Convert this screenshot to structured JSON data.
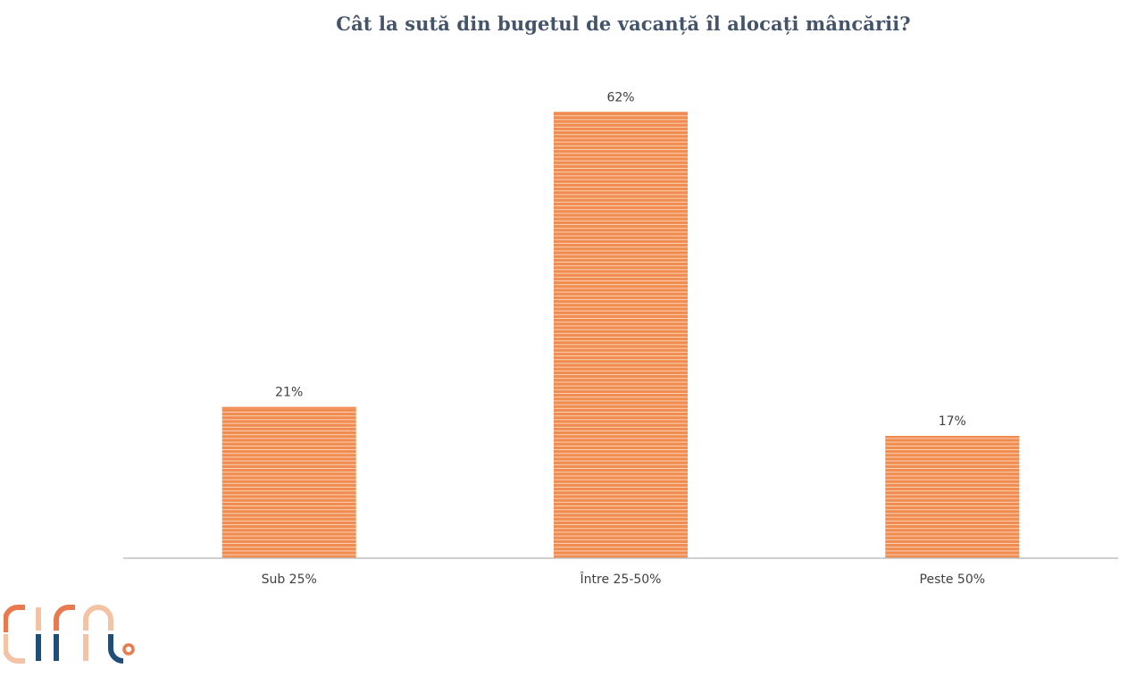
{
  "colors": {
    "bar": "#f08c50",
    "bar_stripe": "#fbd2b7",
    "axis": "#bfbfbf",
    "title": "#44546a",
    "text": "#404040",
    "logo_orange": "#e97a4f",
    "logo_peach": "#f2c3a5",
    "logo_blue": "#1f4e79"
  },
  "logo": {
    "text": "cira",
    "icon": "cira-logo-icon"
  },
  "chart_data": {
    "type": "bar",
    "title": "Cât la sută din bugetul de vacanță îl alocați mâncării?",
    "categories": [
      "Sub 25%",
      "Între 25-50%",
      "Peste 50%"
    ],
    "values": [
      21,
      62,
      17
    ],
    "value_labels": [
      "21%",
      "62%",
      "17%"
    ],
    "xlabel": "",
    "ylabel": "",
    "ylim": [
      0,
      70
    ],
    "grid": false,
    "legend": "none"
  }
}
